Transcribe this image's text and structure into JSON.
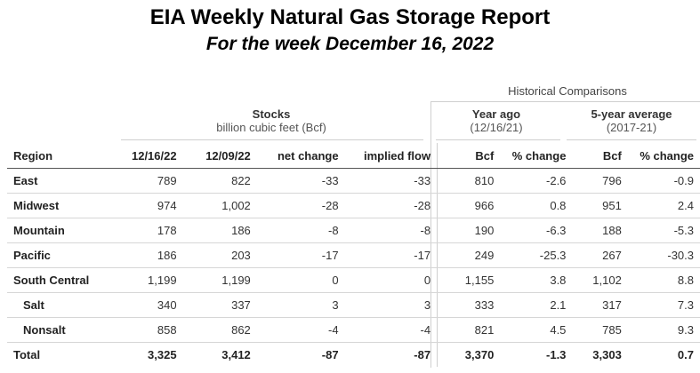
{
  "report": {
    "title": "EIA Weekly Natural Gas Storage Report",
    "subtitle": "For the week December 16, 2022"
  },
  "headers": {
    "historical": "Historical Comparisons",
    "stocks_title": "Stocks",
    "stocks_unit": "billion cubic feet (Bcf)",
    "year_ago_title": "Year ago",
    "year_ago_date": "(12/16/21)",
    "five_year_title": "5-year average",
    "five_year_range": "(2017-21)"
  },
  "columns": [
    "Region",
    "12/16/22",
    "12/09/22",
    "net change",
    "implied flow",
    "Bcf",
    "% change",
    "Bcf",
    "% change"
  ],
  "rows": [
    {
      "region": "East",
      "sub": false,
      "cells": [
        "789",
        "822",
        "-33",
        "-33",
        "810",
        "-2.6",
        "796",
        "-0.9"
      ]
    },
    {
      "region": "Midwest",
      "sub": false,
      "cells": [
        "974",
        "1,002",
        "-28",
        "-28",
        "966",
        "0.8",
        "951",
        "2.4"
      ]
    },
    {
      "region": "Mountain",
      "sub": false,
      "cells": [
        "178",
        "186",
        "-8",
        "-8",
        "190",
        "-6.3",
        "188",
        "-5.3"
      ]
    },
    {
      "region": "Pacific",
      "sub": false,
      "cells": [
        "186",
        "203",
        "-17",
        "-17",
        "249",
        "-25.3",
        "267",
        "-30.3"
      ]
    },
    {
      "region": "South Central",
      "sub": false,
      "cells": [
        "1,199",
        "1,199",
        "0",
        "0",
        "1,155",
        "3.8",
        "1,102",
        "8.8"
      ]
    },
    {
      "region": "Salt",
      "sub": true,
      "cells": [
        "340",
        "337",
        "3",
        "3",
        "333",
        "2.1",
        "317",
        "7.3"
      ]
    },
    {
      "region": "Nonsalt",
      "sub": true,
      "cells": [
        "858",
        "862",
        "-4",
        "-4",
        "821",
        "4.5",
        "785",
        "9.3"
      ]
    }
  ],
  "total": {
    "region": "Total",
    "cells": [
      "3,325",
      "3,412",
      "-87",
      "-87",
      "3,370",
      "-1.3",
      "3,303",
      "0.7"
    ]
  }
}
